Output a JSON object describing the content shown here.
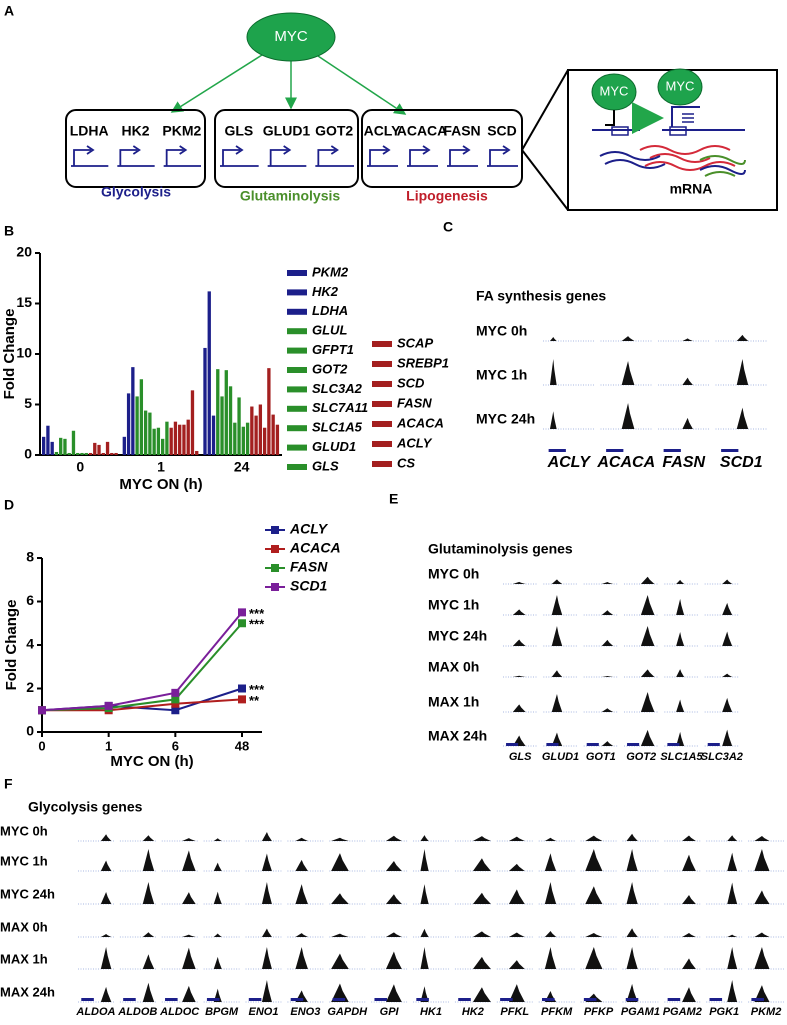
{
  "panel_labels": [
    "A",
    "B",
    "C",
    "D",
    "E",
    "F"
  ],
  "diagram": {
    "center": "MYC",
    "groups": [
      {
        "genes": [
          "LDHA",
          "HK2",
          "PKM2"
        ],
        "label": "Glycolysis"
      },
      {
        "genes": [
          "GLS",
          "GLUD1",
          "GOT2"
        ],
        "label": "Glutaminolysis"
      },
      {
        "genes": [
          "ACLY",
          "ACACA",
          "FASN",
          "SCD"
        ],
        "label": "Lipogenesis"
      }
    ],
    "inset": {
      "factor_before": "MYC",
      "factor_after": "MYC",
      "product": "mRNA"
    }
  },
  "chart_data": [
    {
      "type": "bar",
      "ylabel": "Fold Change",
      "xlabel": "MYC ON (h)",
      "categories": [
        "0",
        "1",
        "24"
      ],
      "ylim": [
        0,
        20
      ],
      "yticks": [
        0,
        5,
        10,
        15,
        20
      ],
      "series": [
        {
          "name": "PKM2",
          "color": "#1c1f8a",
          "values": [
            1.8,
            1.8,
            10.6
          ]
        },
        {
          "name": "HK2",
          "color": "#1c1f8a",
          "values": [
            2.9,
            6.1,
            16.2
          ]
        },
        {
          "name": "LDHA",
          "color": "#1c1f8a",
          "values": [
            1.3,
            8.7,
            3.9
          ]
        },
        {
          "name": "GLUL",
          "color": "#2a8f2a",
          "values": [
            0.3,
            5.8,
            8.5
          ]
        },
        {
          "name": "GFPT1",
          "color": "#2a8f2a",
          "values": [
            1.7,
            7.5,
            5.8
          ]
        },
        {
          "name": "GOT2",
          "color": "#2a8f2a",
          "values": [
            1.6,
            4.4,
            8.4
          ]
        },
        {
          "name": "SLC3A2",
          "color": "#2a8f2a",
          "values": [
            0.2,
            4.2,
            6.8
          ]
        },
        {
          "name": "SLC7A11",
          "color": "#2a8f2a",
          "values": [
            2.4,
            2.6,
            3.2
          ]
        },
        {
          "name": "SLC1A5",
          "color": "#2a8f2a",
          "values": [
            0.2,
            2.7,
            5.7
          ]
        },
        {
          "name": "GLUD1",
          "color": "#2a8f2a",
          "values": [
            0.2,
            1.6,
            2.8
          ]
        },
        {
          "name": "GLS",
          "color": "#2a8f2a",
          "values": [
            0.2,
            3.3,
            3.2
          ]
        },
        {
          "name": "SCAP",
          "color": "#a31f1f",
          "values": [
            0.2,
            2.7,
            4.8
          ]
        },
        {
          "name": "SREBP1",
          "color": "#a31f1f",
          "values": [
            1.2,
            3.3,
            3.9
          ]
        },
        {
          "name": "SCD",
          "color": "#a31f1f",
          "values": [
            1.0,
            3.0,
            5.0
          ]
        },
        {
          "name": "FASN",
          "color": "#a31f1f",
          "values": [
            0.2,
            3.0,
            2.7
          ]
        },
        {
          "name": "ACACA",
          "color": "#a31f1f",
          "values": [
            1.3,
            3.5,
            8.6
          ]
        },
        {
          "name": "ACLY",
          "color": "#a31f1f",
          "values": [
            0.2,
            6.4,
            4.0
          ]
        },
        {
          "name": "CS",
          "color": "#a31f1f",
          "values": [
            0.2,
            0.4,
            3.0
          ]
        }
      ]
    },
    {
      "type": "line",
      "ylabel": "Fold Change",
      "xlabel": "MYC ON (h)",
      "categories": [
        "0",
        "1",
        "6",
        "48"
      ],
      "ylim": [
        0,
        8
      ],
      "yticks": [
        0,
        2,
        4,
        6,
        8
      ],
      "series": [
        {
          "name": "ACLY",
          "color": "#1c1f8a",
          "values": [
            1,
            1.2,
            1.0,
            2.0
          ]
        },
        {
          "name": "ACACA",
          "color": "#b01e1e",
          "values": [
            1,
            1.0,
            1.3,
            1.5
          ]
        },
        {
          "name": "FASN",
          "color": "#2a8f2a",
          "values": [
            1,
            1.1,
            1.5,
            5.0
          ]
        },
        {
          "name": "SCD1",
          "color": "#7a1f9a",
          "values": [
            1,
            1.2,
            1.8,
            5.5
          ]
        }
      ],
      "annotations": [
        "***",
        "***",
        "***",
        "**"
      ]
    }
  ],
  "tracks": [
    {
      "title": "FA synthesis genes",
      "rows": [
        "MYC 0h",
        "MYC 1h",
        "MYC 24h"
      ],
      "genes": [
        "ACLY",
        "ACACA",
        "FASN",
        "SCD1"
      ]
    },
    {
      "title": "Glutaminolysis genes",
      "rows": [
        "MYC 0h",
        "MYC 1h",
        "MYC 24h",
        "MAX 0h",
        "MAX 1h",
        "MAX 24h"
      ],
      "genes": [
        "GLS",
        "GLUD1",
        "GOT1",
        "GOT2",
        "SLC1A5",
        "SLC3A2"
      ]
    },
    {
      "title": "Glycolysis genes",
      "rows": [
        "MYC 0h",
        "MYC 1h",
        "MYC 24h",
        "MAX 0h",
        "MAX 1h",
        "MAX 24h"
      ],
      "genes": [
        "ALDOA",
        "ALDOB",
        "ALDOC",
        "BPGM",
        "ENO1",
        "ENO3",
        "GAPDH",
        "GPI",
        "HK1",
        "HK2",
        "PFKL",
        "PFKM",
        "PFKP",
        "PGAM1",
        "PGAM2",
        "PGK1",
        "PKM2"
      ]
    }
  ]
}
